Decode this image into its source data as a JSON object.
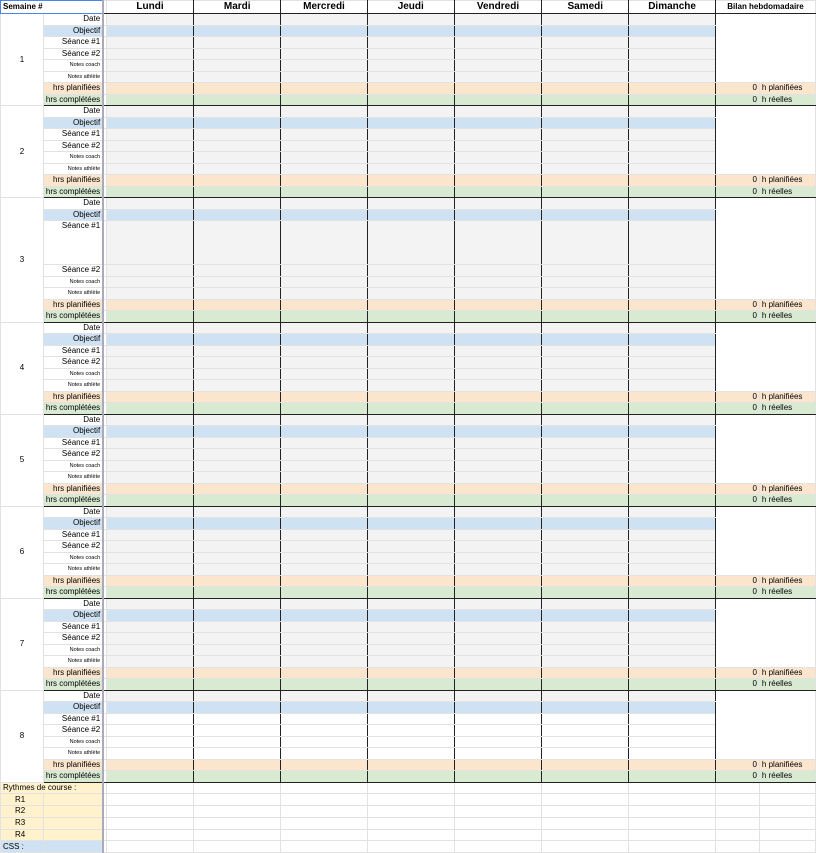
{
  "header": {
    "week_label": "Semaine #",
    "days": [
      "Lundi",
      "Mardi",
      "Mercredi",
      "Jeudi",
      "Vendredi",
      "Samedi",
      "Dimanche"
    ],
    "summary": "Bilan hebdomadaire"
  },
  "row_labels": [
    "Date",
    "Objectif",
    "Séance #1",
    "Séance #2",
    "Notes coach",
    "Notes athlète",
    "hrs planifiées",
    "hrs complétées"
  ],
  "weeks": [
    {
      "number": "1",
      "planned": "0",
      "done": "0"
    },
    {
      "number": "2",
      "planned": "0",
      "done": "0"
    },
    {
      "number": "3",
      "planned": "0",
      "done": "0"
    },
    {
      "number": "4",
      "planned": "0",
      "done": "0"
    },
    {
      "number": "5",
      "planned": "0",
      "done": "0"
    },
    {
      "number": "6",
      "planned": "0",
      "done": "0"
    },
    {
      "number": "7",
      "planned": "0",
      "done": "0"
    },
    {
      "number": "8",
      "planned": "0",
      "done": "0"
    }
  ],
  "summary_units": {
    "planned": "h planifiées",
    "done": "h réelles"
  },
  "footer": {
    "paces_label": "Rythmes de course :",
    "paces": [
      "R1",
      "R2",
      "R3",
      "R4"
    ],
    "css_label": "CSS :"
  },
  "colors": {
    "objective": "#cfe2f3",
    "planned": "#fce5cd",
    "completed": "#d9ead3",
    "paces": "#fff2cc",
    "selection": "#4a86e8"
  }
}
